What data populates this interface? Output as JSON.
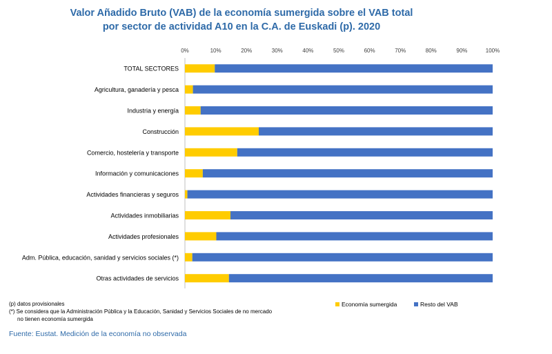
{
  "title_line1": "Valor Añadido Bruto (VAB) de la economía sumergida sobre el VAB total",
  "title_line2": "por sector de actividad A10 en la C.A. de Euskadi (p). 2020",
  "notes": {
    "provisional": "(p) datos provisionales",
    "asterisk_line1": "(*) Se considera que la Administración Pública y la Educación, Sanidad y Servicios Sociales de no mercado",
    "asterisk_line2": "no tienen economía sumergida"
  },
  "source": "Fuente: Eustat. Medición de la economía no observada",
  "colors": {
    "sumergida": "#ffcc00",
    "resto": "#4472c4"
  },
  "chart_data": {
    "type": "bar",
    "orientation": "horizontal",
    "stacked": true,
    "title": "Valor Añadido Bruto (VAB) de la economía sumergida sobre el VAB total por sector de actividad A10 en la C.A. de Euskadi (p). 2020",
    "categories": [
      "TOTAL SECTORES",
      "Agricultura, ganadería y pesca",
      "Industria y energía",
      "Construcción",
      "Comercio, hostelería y transporte",
      "Información y comunicaciones",
      "Actividades financieras y seguros",
      "Actividades inmobiliarias",
      "Actividades profesionales",
      "Adm. Pública, educación, sanidad y servicios sociales (*)",
      "Otras actividades de servicios"
    ],
    "series": [
      {
        "name": "Economía sumergida",
        "values": [
          9.7,
          2.6,
          5.1,
          24.0,
          17.0,
          5.8,
          0.8,
          14.8,
          10.2,
          2.4,
          14.3
        ]
      },
      {
        "name": "Resto del VAB",
        "values": [
          90.3,
          97.4,
          94.9,
          76.0,
          83.0,
          94.2,
          99.2,
          85.2,
          89.8,
          97.6,
          85.7
        ]
      }
    ],
    "xlim": [
      0,
      100
    ],
    "xticks": [
      "0%",
      "10%",
      "20%",
      "30%",
      "40%",
      "50%",
      "60%",
      "70%",
      "80%",
      "90%",
      "100%"
    ],
    "xaxis_position": "top",
    "legend_position": "bottom",
    "grid": false
  }
}
